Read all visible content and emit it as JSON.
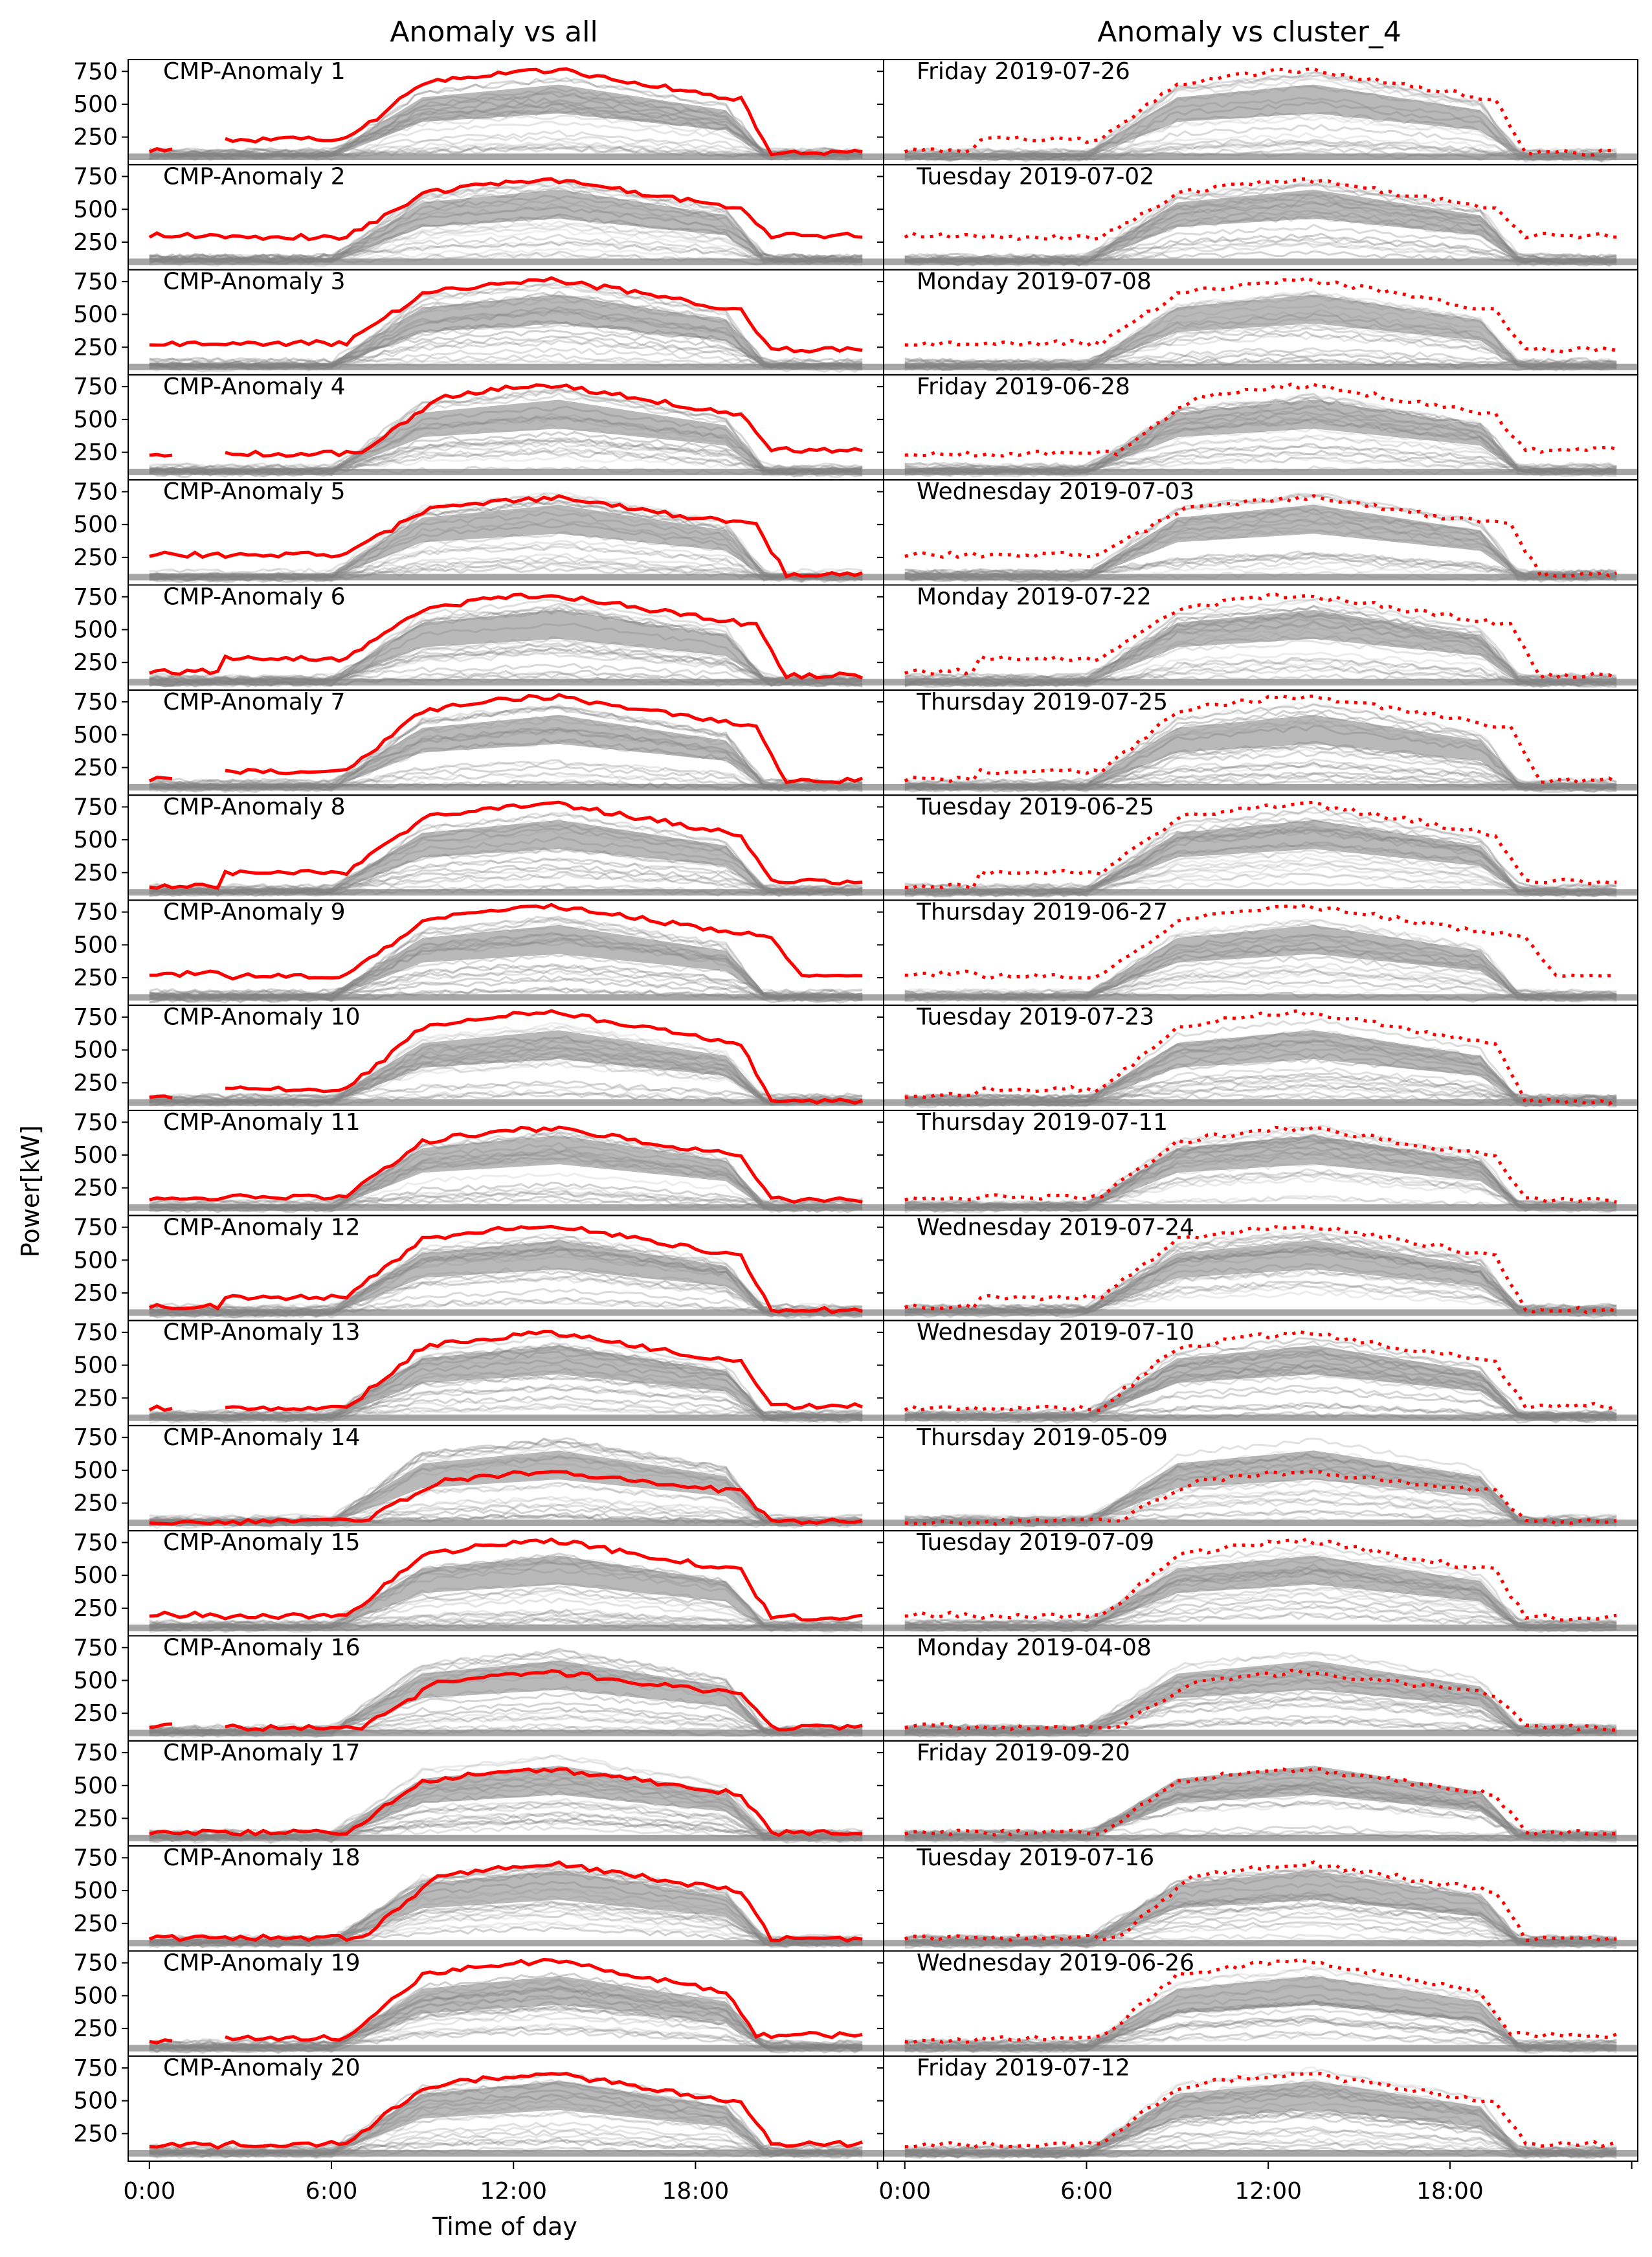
{
  "figure": {
    "column_titles": [
      "Anomaly vs all",
      "Anomaly vs cluster_4"
    ],
    "ylabel": "Power[kW]",
    "xlabel": "Time of day"
  },
  "chart_data": {
    "type": "line",
    "rows": 20,
    "columns": 2,
    "x_ticks": [
      0,
      6,
      12,
      18,
      24
    ],
    "x_tick_labels": [
      "0:00",
      "6:00",
      "12:00",
      "18:00",
      ""
    ],
    "xlim": [
      -0.7,
      24.2
    ],
    "y_ticks": [
      250,
      500,
      750
    ],
    "ylim": [
      40,
      840
    ],
    "colors": {
      "anomaly": "#ff0000",
      "background": "#808080"
    },
    "left_labels": [
      "CMP-Anomaly 1",
      "CMP-Anomaly 2",
      "CMP-Anomaly 3",
      "CMP-Anomaly 4",
      "CMP-Anomaly 5",
      "CMP-Anomaly 6",
      "CMP-Anomaly 7",
      "CMP-Anomaly 8",
      "CMP-Anomaly 9",
      "CMP-Anomaly 10",
      "CMP-Anomaly 11",
      "CMP-Anomaly 12",
      "CMP-Anomaly 13",
      "CMP-Anomaly 14",
      "CMP-Anomaly 15",
      "CMP-Anomaly 16",
      "CMP-Anomaly 17",
      "CMP-Anomaly 18",
      "CMP-Anomaly 19",
      "CMP-Anomaly 20"
    ],
    "right_labels": [
      "Friday 2019-07-26",
      "Tuesday 2019-07-02",
      "Monday 2019-07-08",
      "Friday 2019-06-28",
      "Wednesday 2019-07-03",
      "Monday 2019-07-22",
      "Thursday 2019-07-25",
      "Tuesday 2019-06-25",
      "Thursday 2019-06-27",
      "Tuesday 2019-07-23",
      "Thursday 2019-07-11",
      "Wednesday 2019-07-24",
      "Wednesday 2019-07-10",
      "Thursday 2019-05-09",
      "Tuesday 2019-07-09",
      "Monday 2019-04-08",
      "Friday 2019-09-20",
      "Tuesday 2019-07-16",
      "Wednesday 2019-06-26",
      "Friday 2019-07-12"
    ],
    "anomaly_profiles": [
      {
        "night": 150,
        "early": 230,
        "peak": 760,
        "late": 130,
        "start": 6.5,
        "end": 20.5
      },
      {
        "night": 300,
        "early": 290,
        "peak": 720,
        "late": 300,
        "start": 6.5,
        "end": 20.5
      },
      {
        "night": 280,
        "early": 280,
        "peak": 760,
        "late": 230,
        "start": 6.5,
        "end": 20.5
      },
      {
        "night": 240,
        "early": 240,
        "peak": 760,
        "late": 270,
        "start": 7.0,
        "end": 20.5
      },
      {
        "night": 270,
        "early": 270,
        "peak": 700,
        "late": 120,
        "start": 6.5,
        "end": 21.0
      },
      {
        "night": 180,
        "early": 280,
        "peak": 760,
        "late": 150,
        "start": 6.5,
        "end": 21.0
      },
      {
        "night": 160,
        "early": 220,
        "peak": 790,
        "late": 150,
        "start": 6.5,
        "end": 21.0
      },
      {
        "night": 150,
        "early": 250,
        "peak": 770,
        "late": 180,
        "start": 6.5,
        "end": 20.5
      },
      {
        "night": 280,
        "early": 260,
        "peak": 790,
        "late": 260,
        "start": 6.5,
        "end": 21.5
      },
      {
        "night": 150,
        "early": 200,
        "peak": 780,
        "late": 110,
        "start": 6.5,
        "end": 20.5
      },
      {
        "night": 170,
        "early": 180,
        "peak": 700,
        "late": 160,
        "start": 6.5,
        "end": 20.5
      },
      {
        "night": 150,
        "early": 220,
        "peak": 760,
        "late": 120,
        "start": 6.5,
        "end": 20.5
      },
      {
        "night": 170,
        "early": 170,
        "peak": 740,
        "late": 190,
        "start": 6.5,
        "end": 20.5
      },
      {
        "night": 110,
        "early": 110,
        "peak": 480,
        "late": 110,
        "start": 7.0,
        "end": 20.5
      },
      {
        "night": 200,
        "early": 190,
        "peak": 760,
        "late": 180,
        "start": 6.5,
        "end": 20.5
      },
      {
        "night": 150,
        "early": 140,
        "peak": 560,
        "late": 140,
        "start": 7.0,
        "end": 20.5
      },
      {
        "night": 140,
        "early": 140,
        "peak": 620,
        "late": 140,
        "start": 6.5,
        "end": 20.5
      },
      {
        "night": 140,
        "early": 140,
        "peak": 700,
        "late": 130,
        "start": 7.0,
        "end": 20.5
      },
      {
        "night": 160,
        "early": 180,
        "peak": 760,
        "late": 200,
        "start": 6.5,
        "end": 20.0
      },
      {
        "night": 160,
        "early": 170,
        "peak": 700,
        "late": 170,
        "start": 6.5,
        "end": 20.5
      }
    ]
  }
}
